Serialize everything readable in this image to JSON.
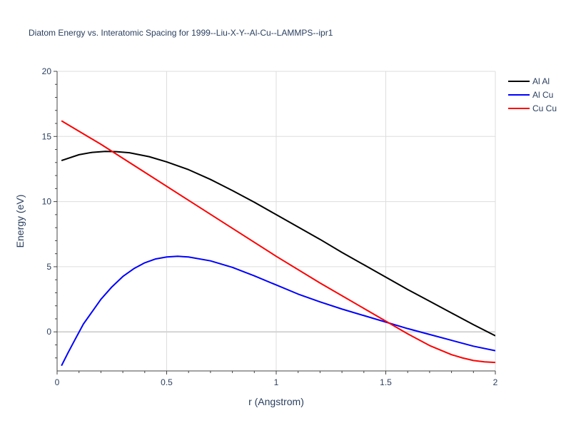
{
  "chart_data": {
    "type": "line",
    "title": "Diatom Energy vs. Interatomic Spacing for 1999--Liu-X-Y--Al-Cu--LAMMPS--ipr1",
    "xlabel": "r (Angstrom)",
    "ylabel": "Energy (eV)",
    "xlim": [
      0,
      2
    ],
    "ylim": [
      -3,
      20
    ],
    "xticks": [
      0,
      0.5,
      1,
      1.5,
      2
    ],
    "xtick_labels": [
      "0",
      "0.5",
      "1",
      "1.5",
      "2"
    ],
    "yticks": [
      0,
      5,
      10,
      15,
      20
    ],
    "ytick_labels": [
      "0",
      "5",
      "10",
      "15",
      "20"
    ],
    "grid": true,
    "legend_position": "top-right",
    "series": [
      {
        "name": "Al Al",
        "color": "#000000",
        "x": [
          0.02,
          0.1,
          0.16,
          0.22,
          0.27,
          0.33,
          0.42,
          0.5,
          0.6,
          0.7,
          0.8,
          0.9,
          1.0,
          1.1,
          1.2,
          1.3,
          1.4,
          1.5,
          1.6,
          1.7,
          1.8,
          1.9,
          2.0
        ],
        "y": [
          13.15,
          13.6,
          13.78,
          13.85,
          13.83,
          13.75,
          13.45,
          13.05,
          12.45,
          11.7,
          10.85,
          9.95,
          9.0,
          8.05,
          7.1,
          6.1,
          5.15,
          4.2,
          3.25,
          2.35,
          1.45,
          0.55,
          -0.3
        ]
      },
      {
        "name": "Al Cu",
        "color": "#0000ff",
        "x": [
          0.02,
          0.05,
          0.08,
          0.12,
          0.16,
          0.2,
          0.25,
          0.3,
          0.35,
          0.4,
          0.45,
          0.5,
          0.55,
          0.6,
          0.7,
          0.8,
          0.9,
          1.0,
          1.1,
          1.2,
          1.3,
          1.4,
          1.5,
          1.6,
          1.7,
          1.8,
          1.9,
          2.0
        ],
        "y": [
          -2.6,
          -1.6,
          -0.65,
          0.6,
          1.55,
          2.5,
          3.45,
          4.25,
          4.85,
          5.3,
          5.6,
          5.75,
          5.8,
          5.75,
          5.45,
          4.95,
          4.3,
          3.6,
          2.9,
          2.3,
          1.75,
          1.25,
          0.75,
          0.25,
          -0.2,
          -0.65,
          -1.1,
          -1.45
        ]
      },
      {
        "name": "Cu Cu",
        "color": "#ff0000",
        "x": [
          0.02,
          0.2,
          0.4,
          0.6,
          0.8,
          1.0,
          1.2,
          1.4,
          1.6,
          1.7,
          1.8,
          1.85,
          1.9,
          1.95,
          2.0
        ],
        "y": [
          16.2,
          14.4,
          12.25,
          10.1,
          7.95,
          5.8,
          3.75,
          1.8,
          -0.15,
          -1.05,
          -1.75,
          -2.0,
          -2.2,
          -2.3,
          -2.35
        ]
      }
    ]
  }
}
